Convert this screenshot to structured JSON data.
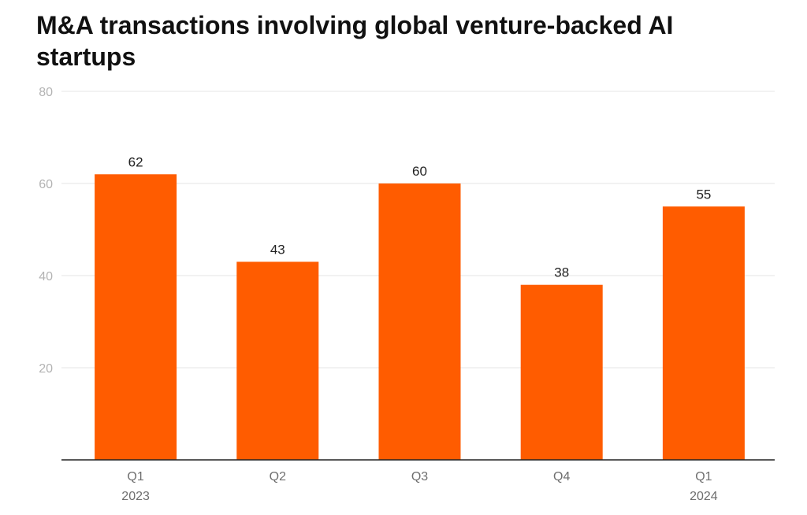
{
  "chart_data": {
    "type": "bar",
    "title": "M&A transactions involving global venture-backed AI startups",
    "xlabel": "",
    "ylabel": "",
    "categories": [
      [
        "Q1",
        "2023"
      ],
      [
        "Q2",
        ""
      ],
      [
        "Q3",
        ""
      ],
      [
        "Q4",
        ""
      ],
      [
        "Q1",
        "2024"
      ]
    ],
    "values": [
      62,
      43,
      60,
      38,
      55
    ],
    "data_labels": [
      "62",
      "43",
      "60",
      "38",
      "55"
    ],
    "y_ticks": [
      "20",
      "40",
      "60",
      "80"
    ],
    "ylim": [
      0,
      80
    ],
    "grid": true,
    "legend": "none",
    "colors": {
      "bar": "#ff5c00",
      "grid": "#e6e6e6",
      "axis": "#222222",
      "tick_label": "#b3b3b3",
      "category_label": "#6e6e6e",
      "data_label": "#222222"
    }
  }
}
